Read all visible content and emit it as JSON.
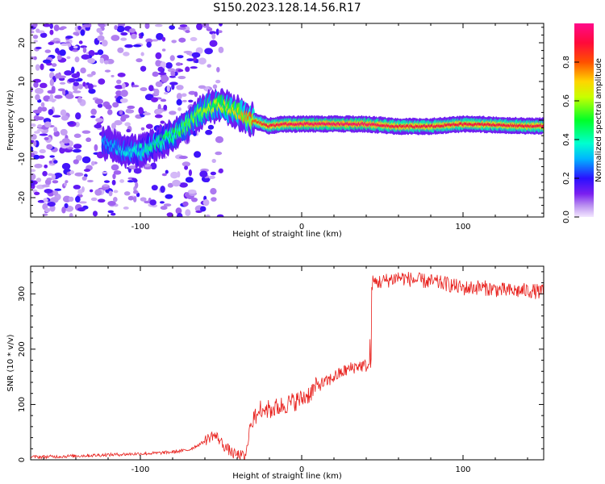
{
  "figure_title": "S150.2023.128.14.56.R17",
  "chart_data": [
    {
      "type": "heatmap",
      "xlabel": "Height of straight line (km)",
      "ylabel": "Frequency (Hz)",
      "xlim": [
        -168,
        150
      ],
      "ylim": [
        -25,
        25
      ],
      "x_ticks": [
        -100,
        0,
        100
      ],
      "y_ticks": [
        -20,
        -10,
        0,
        10,
        20
      ],
      "colorbar": {
        "label": "Normalized spectral amplitude",
        "range": [
          0.0,
          1.0
        ],
        "ticks": [
          0.0,
          0.2,
          0.4,
          0.6,
          0.8
        ],
        "colormap": "purple-blue-cyan-green-yellow-red-magenta"
      },
      "ridge": {
        "x": [
          -120,
          -110,
          -100,
          -90,
          -80,
          -70,
          -60,
          -50,
          -40,
          -30,
          -20,
          -10,
          0,
          20,
          40,
          60,
          80,
          100,
          120,
          140,
          150
        ],
        "y": [
          -6,
          -8,
          -8,
          -6,
          -4,
          -1,
          3,
          4,
          2,
          0,
          -1.5,
          -1,
          -1,
          -1,
          -1,
          -1.6,
          -1.6,
          -1,
          -1.2,
          -1.5,
          -1.5
        ],
        "amplitude": [
          0.3,
          0.35,
          0.4,
          0.45,
          0.5,
          0.55,
          0.6,
          0.65,
          0.7,
          0.8,
          0.9,
          0.92,
          0.95,
          0.95,
          0.95,
          0.9,
          0.9,
          0.9,
          0.9,
          0.9,
          0.9
        ]
      },
      "noise_region_x": [
        -168,
        -50
      ]
    },
    {
      "type": "line",
      "xlabel": "Height of straight line (km)",
      "ylabel": "SNR (10 * v/v)",
      "xlim": [
        -168,
        150
      ],
      "ylim": [
        0,
        350
      ],
      "x_ticks": [
        -100,
        0,
        100
      ],
      "y_ticks": [
        0,
        100,
        200,
        300
      ],
      "color": "#e8201c",
      "series": [
        {
          "x": [
            -168,
            -150,
            -130,
            -110,
            -90,
            -80,
            -70,
            -62,
            -55,
            -52,
            -48,
            -42,
            -38,
            -35,
            -32,
            -28,
            -25,
            -20,
            -15,
            -10,
            -5,
            0,
            5,
            10,
            15,
            20,
            25,
            30,
            35,
            40,
            42,
            43,
            50,
            60,
            70,
            80,
            90,
            100,
            110,
            120,
            130,
            140,
            150
          ],
          "y": [
            5,
            6,
            8,
            10,
            12,
            14,
            18,
            30,
            45,
            40,
            25,
            10,
            8,
            5,
            60,
            80,
            95,
            90,
            95,
            100,
            105,
            110,
            120,
            135,
            140,
            150,
            158,
            165,
            170,
            170,
            168,
            320,
            322,
            330,
            325,
            322,
            318,
            310,
            312,
            308,
            305,
            306,
            303
          ]
        }
      ]
    }
  ]
}
